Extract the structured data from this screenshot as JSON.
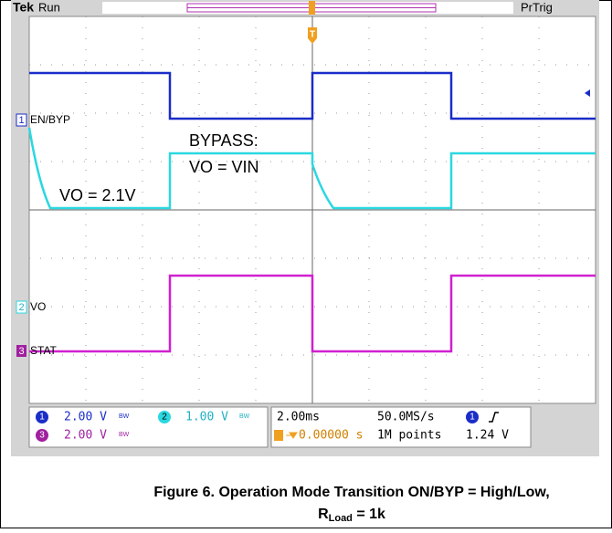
{
  "scope": {
    "header": {
      "brand": "Tek",
      "state": "Run",
      "trigger_mode": "PrTrig",
      "trigger_marker": "T"
    },
    "channel_labels": [
      {
        "number": "1",
        "label": "EN/BYP"
      },
      {
        "number": "2",
        "label": "VO"
      },
      {
        "number": "3",
        "label": "STAT"
      }
    ],
    "annotations": [
      "BYPASS:",
      "VO = VIN",
      "VO = 2.1V"
    ],
    "readout": {
      "channels": [
        {
          "number": "1",
          "scale": "2.00 V",
          "bw": "BW"
        },
        {
          "number": "2",
          "scale": "1.00 V",
          "bw": "BW"
        },
        {
          "number": "3",
          "scale": "2.00 V",
          "bw": "BW"
        }
      ],
      "timebase": "2.00ms",
      "sample_rate": "50.0MS/s",
      "trigger_position": "0.00000 s",
      "record_length": "1M points",
      "trigger_source": "1",
      "trigger_level": "1.24 V"
    }
  },
  "caption": {
    "line1": "Figure 6. Operation Mode Transition ON/BYP = High/Low,",
    "line2_main": "R",
    "line2_sub": "Load",
    "line2_rest": " = 1k"
  }
}
